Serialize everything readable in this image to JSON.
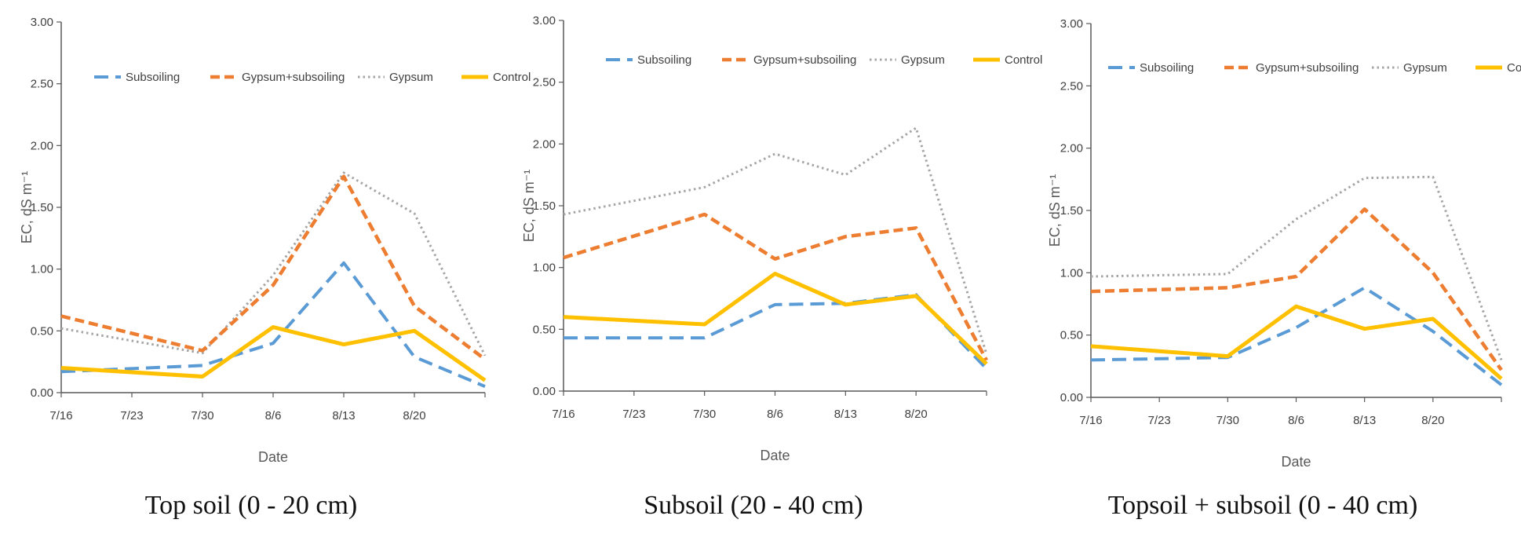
{
  "colors": {
    "Subsoiling": "#5b9bd5",
    "Gypsum+subsoiling": "#ed7d31",
    "Gypsum": "#a5a5a5",
    "Control": "#ffc000",
    "axis": "#595959"
  },
  "chart_data": [
    {
      "type": "line",
      "caption": "Top soil (0 - 20 cm)",
      "xlabel": "Date",
      "ylabel": "EC, dS m⁻¹",
      "x_tick_labels": [
        "7/16",
        "7/23",
        "7/30",
        "8/6",
        "8/13",
        "8/20"
      ],
      "y_tick_labels": [
        "0.00",
        "0.50",
        "1.00",
        "1.50",
        "2.00",
        "2.50",
        "3.00"
      ],
      "ylim": [
        0,
        3
      ],
      "x_range": [
        0,
        6
      ],
      "legend": [
        "Subsoiling",
        "Gypsum+subsoiling",
        "Gypsum",
        "Control"
      ],
      "series": [
        {
          "name": "Subsoiling",
          "x": [
            0,
            2,
            3,
            4,
            5,
            6
          ],
          "values": [
            0.17,
            0.22,
            0.4,
            1.05,
            0.29,
            0.05
          ]
        },
        {
          "name": "Gypsum+subsoiling",
          "x": [
            0,
            2,
            3,
            4,
            5,
            6
          ],
          "values": [
            0.62,
            0.34,
            0.87,
            1.75,
            0.7,
            0.27
          ]
        },
        {
          "name": "Gypsum",
          "x": [
            0,
            2,
            3,
            4,
            5,
            6
          ],
          "values": [
            0.52,
            0.32,
            0.95,
            1.78,
            1.45,
            0.3
          ]
        },
        {
          "name": "Control",
          "x": [
            0,
            2,
            3,
            4,
            5,
            6
          ],
          "values": [
            0.2,
            0.13,
            0.53,
            0.39,
            0.5,
            0.1
          ]
        }
      ]
    },
    {
      "type": "line",
      "caption": "Subsoil (20 - 40 cm)",
      "xlabel": "Date",
      "ylabel": "EC, dS m⁻¹",
      "x_tick_labels": [
        "7/16",
        "7/23",
        "7/30",
        "8/6",
        "8/13",
        "8/20"
      ],
      "y_tick_labels": [
        "0.00",
        "0.50",
        "1.00",
        "1.50",
        "2.00",
        "2.50",
        "3.00"
      ],
      "ylim": [
        0,
        3
      ],
      "x_range": [
        0,
        6
      ],
      "legend": [
        "Subsoiling",
        "Gypsum+subsoiling",
        "Gypsum",
        "Control"
      ],
      "series": [
        {
          "name": "Subsoiling",
          "x": [
            0,
            2,
            3,
            4,
            5,
            6
          ],
          "values": [
            0.43,
            0.43,
            0.7,
            0.71,
            0.78,
            0.18
          ]
        },
        {
          "name": "Gypsum+subsoiling",
          "x": [
            0,
            2,
            3,
            4,
            5,
            6
          ],
          "values": [
            1.08,
            1.43,
            1.07,
            1.25,
            1.32,
            0.25
          ]
        },
        {
          "name": "Gypsum",
          "x": [
            0,
            2,
            3,
            4,
            5,
            6
          ],
          "values": [
            1.43,
            1.65,
            1.92,
            1.75,
            2.13,
            0.3
          ]
        },
        {
          "name": "Control",
          "x": [
            0,
            2,
            3,
            4,
            5,
            6
          ],
          "values": [
            0.6,
            0.54,
            0.95,
            0.7,
            0.77,
            0.22
          ]
        }
      ]
    },
    {
      "type": "line",
      "caption": "Topsoil + subsoil (0 - 40 cm)",
      "xlabel": "Date",
      "ylabel": "EC, dS m⁻¹",
      "x_tick_labels": [
        "7/16",
        "7/23",
        "7/30",
        "8/6",
        "8/13",
        "8/20"
      ],
      "y_tick_labels": [
        "0.00",
        "0.50",
        "1.00",
        "1.50",
        "2.00",
        "2.50",
        "3.00"
      ],
      "ylim": [
        0,
        3
      ],
      "x_range": [
        0,
        6
      ],
      "legend": [
        "Subsoiling",
        "Gypsum+subsoiling",
        "Gypsum",
        "Control"
      ],
      "series": [
        {
          "name": "Subsoiling",
          "x": [
            0,
            2,
            3,
            4,
            5,
            6
          ],
          "values": [
            0.3,
            0.32,
            0.56,
            0.88,
            0.53,
            0.1
          ]
        },
        {
          "name": "Gypsum+subsoiling",
          "x": [
            0,
            2,
            3,
            4,
            5,
            6
          ],
          "values": [
            0.85,
            0.88,
            0.97,
            1.51,
            1.0,
            0.22
          ]
        },
        {
          "name": "Gypsum",
          "x": [
            0,
            2,
            3,
            4,
            5,
            6
          ],
          "values": [
            0.97,
            0.99,
            1.43,
            1.76,
            1.77,
            0.3
          ]
        },
        {
          "name": "Control",
          "x": [
            0,
            2,
            3,
            4,
            5,
            6
          ],
          "values": [
            0.41,
            0.33,
            0.73,
            0.55,
            0.63,
            0.15
          ]
        }
      ]
    }
  ]
}
